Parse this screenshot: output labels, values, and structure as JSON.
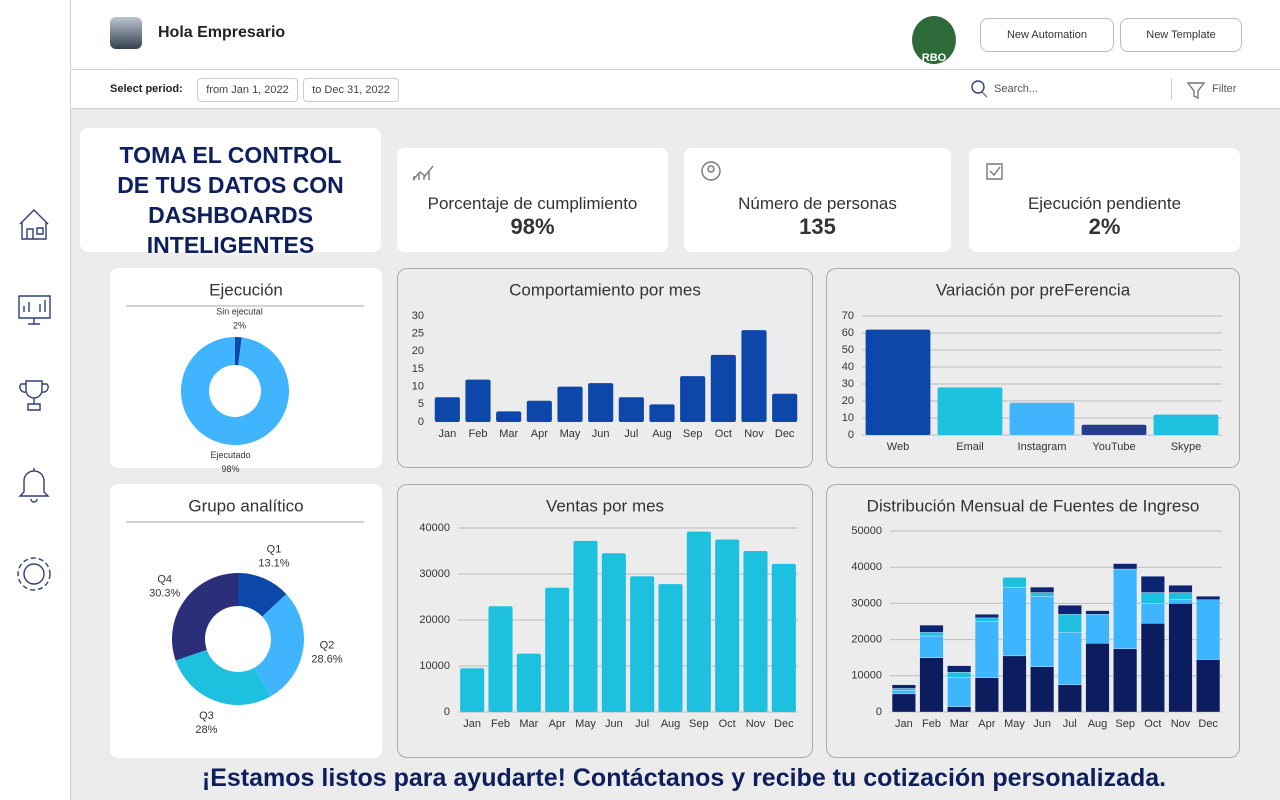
{
  "header": {
    "greeting": "Hola Empresario",
    "logo": "RBO",
    "buttons": [
      "New Automation",
      "New Template"
    ]
  },
  "toolbar": {
    "period_label": "Select period:",
    "from": "from Jan 1, 2022",
    "to": "to Dec 31, 2022",
    "search": "Search...",
    "filter": "Filter"
  },
  "banner": {
    "lines": [
      "TOMA EL CONTROL",
      "DE TUS DATOS CON",
      "DASHBOARDS",
      "INTELIGENTES"
    ]
  },
  "kpis": [
    {
      "label": "Porcentaje de cumplimiento",
      "value": "98%"
    },
    {
      "label": "Número de personas",
      "value": "135"
    },
    {
      "label": "Ejecución pendiente",
      "value": "2%"
    }
  ],
  "footer": "¡Estamos listos para ayudarte! Contáctanos y recibe tu cotización personalizada.",
  "chart_data": [
    {
      "type": "donut",
      "title": "Ejecución",
      "categories": [
        "Sin ejecutal",
        "Ejecutado"
      ],
      "values": [
        2,
        98
      ],
      "value_labels": [
        "2%",
        "98%"
      ],
      "colors": [
        "#0d47a9",
        "#40b4ff"
      ]
    },
    {
      "type": "bar",
      "title": "Comportamiento por mes",
      "categories": [
        "Jan",
        "Feb",
        "Mar",
        "Apr",
        "May",
        "Jun",
        "Jul",
        "Aug",
        "Sep",
        "Oct",
        "Nov",
        "Dec"
      ],
      "values": [
        7,
        12,
        3,
        6,
        10,
        11,
        7,
        5,
        13,
        19,
        26,
        8
      ],
      "color": "#0d47a9",
      "ylim": [
        0,
        30
      ],
      "yticks": [
        0,
        5,
        10,
        15,
        20,
        25,
        30
      ],
      "grid": false
    },
    {
      "type": "bar",
      "title": "Variación por preFerencia",
      "categories": [
        "Web",
        "Email",
        "Instagram",
        "YouTube",
        "Skype"
      ],
      "values": [
        62,
        28,
        19,
        6,
        12
      ],
      "colors": [
        "#0d47a9",
        "#1ec0e0",
        "#40b4ff",
        "#283c8c",
        "#1ec0e0"
      ],
      "ylim": [
        0,
        70
      ],
      "yticks": [
        0,
        10,
        20,
        30,
        40,
        50,
        60,
        70
      ],
      "grid": true
    },
    {
      "type": "donut",
      "title": "Grupo analítico",
      "categories": [
        "Q1",
        "Q2",
        "Q3",
        "Q4"
      ],
      "values": [
        13.1,
        28.6,
        28,
        30.3
      ],
      "value_labels": [
        "13.1%",
        "28.6%",
        "28%",
        "30.3%"
      ],
      "colors": [
        "#0d47a9",
        "#40b4ff",
        "#1ec0e0",
        "#2b2f7a"
      ]
    },
    {
      "type": "bar",
      "title": "Ventas por mes",
      "categories": [
        "Jan",
        "Feb",
        "Mar",
        "Apr",
        "May",
        "Jun",
        "Jul",
        "Aug",
        "Sep",
        "Oct",
        "Nov",
        "Dec"
      ],
      "values": [
        9500,
        23000,
        12700,
        27000,
        37200,
        34500,
        29500,
        27800,
        39200,
        37500,
        35000,
        32200
      ],
      "color": "#1ec0e0",
      "ylim": [
        0,
        40000
      ],
      "yticks": [
        0,
        10000,
        20000,
        30000,
        40000
      ],
      "grid": true
    },
    {
      "type": "stacked_bar",
      "title": "Distribución Mensual de Fuentes de Ingreso",
      "categories": [
        "Jan",
        "Feb",
        "Mar",
        "Apr",
        "May",
        "Jun",
        "Jul",
        "Aug",
        "Sep",
        "Oct",
        "Nov",
        "Dec"
      ],
      "series": [
        {
          "color": "#0b1d5e",
          "values": [
            5000,
            15000,
            1500,
            9500,
            15500,
            12500,
            7500,
            19000,
            17500,
            24500,
            30000,
            14500
          ]
        },
        {
          "color": "#3db5ff",
          "values": [
            1000,
            6000,
            8000,
            15500,
            19000,
            19500,
            14500,
            8000,
            22000,
            5500,
            1000,
            16500
          ]
        },
        {
          "color": "#1ec0e0",
          "values": [
            500,
            1000,
            1500,
            1000,
            2700,
            1000,
            5000,
            0,
            0,
            3000,
            2000,
            0
          ]
        },
        {
          "color": "#0d2472",
          "values": [
            1000,
            2000,
            1800,
            1000,
            0,
            1500,
            2500,
            1000,
            1500,
            4500,
            2000,
            1000
          ]
        }
      ],
      "ylim": [
        0,
        50000
      ],
      "yticks": [
        0,
        10000,
        20000,
        30000,
        40000,
        50000
      ],
      "grid": true
    }
  ]
}
